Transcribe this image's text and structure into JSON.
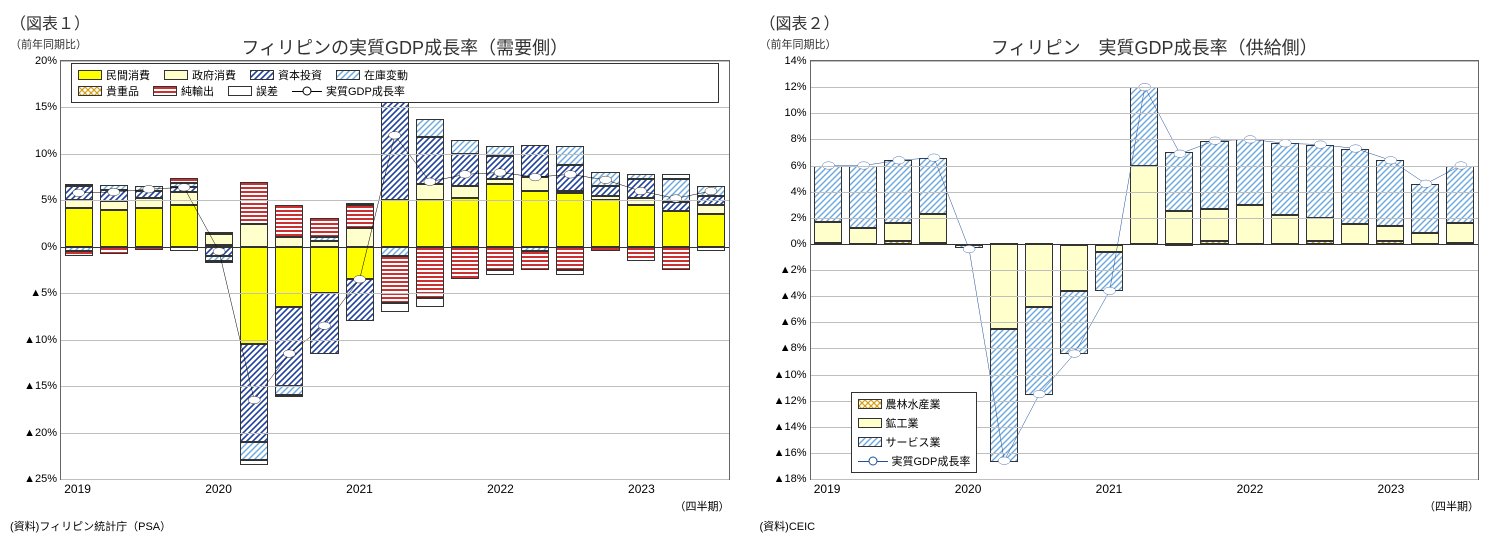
{
  "global": {
    "background_color": "#ffffff",
    "grid_color": "#bfbfbf",
    "axis_color": "#333333",
    "fontsize_title": 18,
    "fontsize_label": 11
  },
  "chart1": {
    "figure_label": "（図表１）",
    "ylabel": "（前年同期比）",
    "title": "フィリピンの実質GDP成長率（需要側）",
    "type": "stacked-bar-with-line",
    "ylim": [
      -25,
      20
    ],
    "ytick_step": 5,
    "yticks": [
      20,
      15,
      10,
      5,
      0,
      -5,
      -10,
      -15,
      -20,
      -25
    ],
    "negative_prefix": "▲",
    "x_categories": [
      "2019Q1",
      "2019Q2",
      "2019Q3",
      "2019Q4",
      "2020Q1",
      "2020Q2",
      "2020Q3",
      "2020Q4",
      "2021Q1",
      "2021Q2",
      "2021Q3",
      "2021Q4",
      "2022Q1",
      "2022Q2",
      "2022Q3",
      "2022Q4",
      "2023Q1",
      "2023Q2",
      "2023Q3"
    ],
    "x_year_labels": [
      "2019",
      "2020",
      "2021",
      "2022",
      "2023"
    ],
    "x_year_positions": [
      0,
      4,
      8,
      12,
      16
    ],
    "xaxis_label": "（四半期）",
    "source": "(資料)フィリピン統計庁（PSA）",
    "colors": {
      "民間消費": "#ffff00",
      "政府消費": "#ffffcc",
      "資本投資": "pattern-diag-blue",
      "在庫変動": "pattern-diag-lightblue",
      "貴重品": "pattern-hatch-gold",
      "純輸出": "pattern-hstripe-red",
      "誤差": "#ffffff",
      "line": "#000000"
    },
    "series_order": [
      "民間消費",
      "政府消費",
      "資本投資",
      "在庫変動",
      "貴重品",
      "純輸出",
      "誤差"
    ],
    "legend_items": [
      "民間消費",
      "政府消費",
      "資本投資",
      "在庫変動",
      "貴重品",
      "純輸出",
      "誤差",
      "実質GDP成長率"
    ],
    "data": {
      "民間消費": [
        4.2,
        4.0,
        4.2,
        4.5,
        0.2,
        -10.5,
        -6.5,
        -5.0,
        -3.5,
        5.0,
        5.0,
        5.3,
        6.8,
        6.0,
        5.8,
        5.0,
        4.5,
        3.8,
        3.5
      ],
      "政府消費": [
        0.8,
        0.9,
        1.0,
        1.4,
        1.2,
        2.5,
        1.0,
        0.6,
        2.0,
        0.0,
        1.8,
        1.2,
        0.5,
        1.5,
        0.2,
        0.5,
        0.8,
        0.0,
        1.0
      ],
      "資本投資": [
        1.5,
        1.2,
        0.8,
        0.5,
        -1.0,
        -10.5,
        -8.5,
        -6.5,
        -4.5,
        14.0,
        5.0,
        3.5,
        2.5,
        3.5,
        2.8,
        1.0,
        2.0,
        1.0,
        1.0
      ],
      "在庫変動": [
        -0.5,
        0.6,
        0.5,
        0.5,
        -0.5,
        -2.0,
        -1.0,
        0.5,
        0.0,
        -1.0,
        2.0,
        1.5,
        1.0,
        -0.5,
        2.0,
        1.5,
        0.5,
        2.5,
        1.0
      ],
      "貴重品": [
        0.0,
        0.0,
        0.0,
        0.0,
        0.0,
        0.0,
        0.0,
        0.0,
        0.0,
        0.0,
        0.0,
        0.0,
        0.0,
        0.0,
        0.0,
        0.0,
        0.0,
        0.0,
        0.0
      ],
      "純輸出": [
        -0.5,
        -0.8,
        -0.3,
        0.5,
        0.2,
        4.5,
        3.5,
        2.0,
        2.5,
        -5.0,
        -5.5,
        -3.5,
        -2.5,
        -2.0,
        -2.5,
        -0.5,
        -1.5,
        -2.5,
        0.0
      ],
      "誤差": [
        0.3,
        0.0,
        0.0,
        -0.5,
        -0.3,
        -0.5,
        -0.2,
        0.0,
        0.2,
        -1.0,
        -1.0,
        0.0,
        -0.5,
        0.0,
        -0.5,
        0.0,
        0.0,
        0.5,
        -0.5
      ]
    },
    "line_values": [
      5.8,
      5.9,
      6.2,
      6.4,
      -0.5,
      -16.5,
      -11.5,
      -8.5,
      -3.5,
      12.0,
      7.0,
      7.8,
      8.0,
      7.5,
      7.8,
      7.2,
      6.0,
      5.2,
      6.0
    ]
  },
  "chart2": {
    "figure_label": "（図表２）",
    "ylabel": "（前年同期比）",
    "title": "フィリピン　実質GDP成長率（供給側）",
    "type": "stacked-bar-with-line",
    "ylim": [
      -18,
      14
    ],
    "ytick_step": 2,
    "yticks": [
      14,
      12,
      10,
      8,
      6,
      4,
      2,
      0,
      -2,
      -4,
      -6,
      -8,
      -10,
      -12,
      -14,
      -16,
      -18
    ],
    "negative_prefix": "▲",
    "x_categories": [
      "2019Q1",
      "2019Q2",
      "2019Q3",
      "2019Q4",
      "2020Q1",
      "2020Q2",
      "2020Q3",
      "2020Q4",
      "2021Q1",
      "2021Q2",
      "2021Q3",
      "2021Q4",
      "2022Q1",
      "2022Q2",
      "2022Q3",
      "2022Q4",
      "2023Q1",
      "2023Q2",
      "2023Q3"
    ],
    "x_year_labels": [
      "2019",
      "2020",
      "2021",
      "2022",
      "2023"
    ],
    "x_year_positions": [
      0,
      4,
      8,
      12,
      16
    ],
    "xaxis_label": "（四半期）",
    "source": "(資料)CEIC",
    "colors": {
      "農林水産業": "pattern-hatch-gold",
      "鉱工業": "#ffffcc",
      "サービス業": "pattern-diag-lightblue",
      "line": "#1f4e9c"
    },
    "series_order": [
      "農林水産業",
      "鉱工業",
      "サービス業"
    ],
    "legend_items": [
      "農林水産業",
      "鉱工業",
      "サービス業",
      "実質GDP成長率"
    ],
    "data": {
      "農林水産業": [
        0.1,
        0.0,
        0.2,
        0.1,
        -0.1,
        0.1,
        0.1,
        -0.1,
        -0.1,
        0.0,
        -0.1,
        0.2,
        0.0,
        0.0,
        0.2,
        0.0,
        0.2,
        0.0,
        0.1
      ],
      "鉱工業": [
        1.6,
        1.2,
        1.4,
        2.2,
        0.0,
        -6.5,
        -4.8,
        -3.5,
        -0.5,
        6.0,
        2.5,
        2.5,
        3.0,
        2.2,
        1.8,
        1.5,
        1.2,
        0.8,
        1.5
      ],
      "サービス業": [
        4.3,
        4.8,
        4.8,
        4.3,
        -0.2,
        -10.2,
        -6.8,
        -4.8,
        -3.0,
        6.0,
        4.5,
        5.2,
        5.0,
        5.5,
        5.6,
        5.8,
        5.0,
        3.8,
        4.4
      ]
    },
    "line_values": [
      6.0,
      6.0,
      6.4,
      6.6,
      -0.4,
      -16.6,
      -11.5,
      -8.4,
      -3.6,
      12.0,
      6.9,
      7.9,
      8.0,
      7.7,
      7.6,
      7.3,
      6.4,
      4.6,
      6.0
    ]
  }
}
